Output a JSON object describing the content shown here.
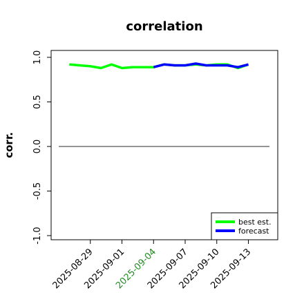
{
  "chart_data": {
    "type": "line",
    "title": "correlation",
    "ylabel": "corr.",
    "xlabel": "",
    "ylim": [
      -1.0,
      1.0
    ],
    "yticks": [
      "-1.0",
      "-0.5",
      "0.0",
      "0.5",
      "1.0"
    ],
    "x_start": "2025-08-26",
    "x_end": "2025-09-15",
    "xticks": [
      {
        "label": "2025-08-29",
        "color": "#000000"
      },
      {
        "label": "2025-09-01",
        "color": "#000000"
      },
      {
        "label": "2025-09-04",
        "color": "#228b22"
      },
      {
        "label": "2025-09-07",
        "color": "#000000"
      },
      {
        "label": "2025-09-10",
        "color": "#000000"
      },
      {
        "label": "2025-09-13",
        "color": "#000000"
      }
    ],
    "reference_line": {
      "y": 0.0,
      "color": "#555555"
    },
    "series": [
      {
        "name": "best est.",
        "color": "#00ff00",
        "x": [
          "2025-08-27",
          "2025-08-28",
          "2025-08-29",
          "2025-08-30",
          "2025-08-31",
          "2025-09-01",
          "2025-09-02",
          "2025-09-03",
          "2025-09-04",
          "2025-09-05",
          "2025-09-06",
          "2025-09-07",
          "2025-09-08",
          "2025-09-09",
          "2025-09-10",
          "2025-09-11",
          "2025-09-12",
          "2025-09-13"
        ],
        "values": [
          0.92,
          0.91,
          0.9,
          0.88,
          0.92,
          0.88,
          0.89,
          0.89,
          0.89,
          0.92,
          0.91,
          0.91,
          0.92,
          0.91,
          0.92,
          0.92,
          0.88,
          0.92
        ]
      },
      {
        "name": "forecast",
        "color": "#0000ff",
        "x": [
          "2025-09-04",
          "2025-09-05",
          "2025-09-06",
          "2025-09-07",
          "2025-09-08",
          "2025-09-09",
          "2025-09-10",
          "2025-09-11",
          "2025-09-12",
          "2025-09-13"
        ],
        "values": [
          0.89,
          0.92,
          0.91,
          0.91,
          0.93,
          0.91,
          0.91,
          0.91,
          0.89,
          0.92
        ]
      }
    ],
    "legend_position": "bottom-right",
    "grid": false
  }
}
